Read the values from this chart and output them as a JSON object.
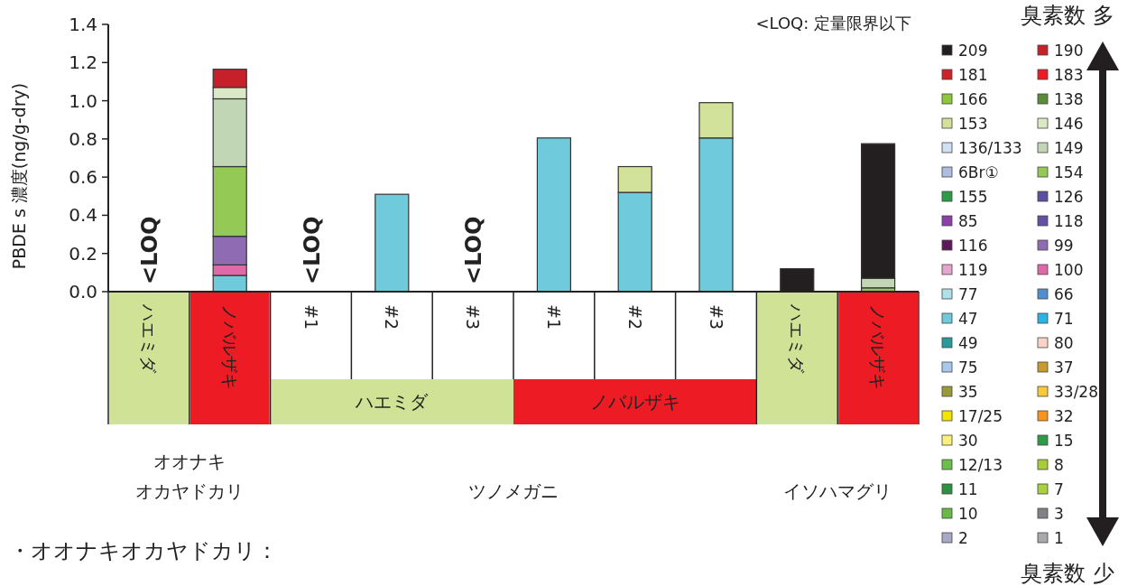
{
  "chart_data": {
    "type": "bar",
    "stacked": true,
    "ylabel": "PBDE s 濃度(ng/g-dry)",
    "categories": [
      "ハエミダ",
      "ノバルザキ",
      "#1",
      "#2",
      "#3",
      "#1",
      "#2",
      "#3",
      "ハエミダ",
      "ノバルザキ"
    ],
    "ylim": [
      0,
      1.4
    ],
    "yticks": [
      {
        "value": 0,
        "label": "0.0"
      },
      {
        "value": 0.2,
        "label": "0.2"
      },
      {
        "value": 0.4,
        "label": "0.4"
      },
      {
        "value": 0.6,
        "label": "0.6"
      },
      {
        "value": 0.8,
        "label": "0.8"
      },
      {
        "value": 1.0,
        "label": "1.0"
      },
      {
        "value": 1.2,
        "label": "1.2"
      },
      {
        "value": 1.4,
        "label": "1.4"
      }
    ],
    "legend": "right",
    "series": [
      {
        "name": "1",
        "color": "#a7a9ac",
        "values": [
          null,
          null,
          null,
          null,
          null,
          null,
          null,
          null,
          null,
          null
        ]
      },
      {
        "name": "2",
        "color": "#a7a9c7",
        "values": [
          null,
          null,
          null,
          null,
          null,
          null,
          null,
          null,
          null,
          null
        ]
      },
      {
        "name": "3",
        "color": "#808285",
        "values": [
          null,
          null,
          null,
          null,
          null,
          null,
          null,
          null,
          null,
          null
        ]
      },
      {
        "name": "10",
        "color": "#6ab84a",
        "values": [
          null,
          null,
          null,
          null,
          null,
          null,
          null,
          null,
          null,
          null
        ]
      },
      {
        "name": "7",
        "color": "#a8d040",
        "values": [
          null,
          null,
          null,
          null,
          null,
          null,
          null,
          null,
          null,
          null
        ]
      },
      {
        "name": "11",
        "color": "#2e9040",
        "values": [
          null,
          null,
          null,
          null,
          null,
          null,
          null,
          null,
          null,
          null
        ]
      },
      {
        "name": "8",
        "color": "#a6cc3a",
        "values": [
          null,
          null,
          null,
          null,
          null,
          null,
          null,
          null,
          null,
          null
        ]
      },
      {
        "name": "12/13",
        "color": "#6cbf4b",
        "values": [
          null,
          null,
          null,
          null,
          null,
          null,
          null,
          null,
          null,
          null
        ]
      },
      {
        "name": "15",
        "color": "#2e9b48",
        "values": [
          null,
          null,
          null,
          null,
          null,
          null,
          null,
          null,
          null,
          null
        ]
      },
      {
        "name": "30",
        "color": "#faef7a",
        "values": [
          null,
          null,
          null,
          null,
          null,
          null,
          null,
          null,
          null,
          null
        ]
      },
      {
        "name": "32",
        "color": "#f7941e",
        "values": [
          null,
          null,
          null,
          null,
          null,
          null,
          null,
          null,
          null,
          null
        ]
      },
      {
        "name": "17/25",
        "color": "#f2e600",
        "values": [
          null,
          null,
          null,
          null,
          null,
          null,
          null,
          null,
          null,
          null
        ]
      },
      {
        "name": "33/28",
        "color": "#f9c93a",
        "values": [
          null,
          null,
          null,
          null,
          null,
          null,
          null,
          null,
          null,
          null
        ]
      },
      {
        "name": "35",
        "color": "#9a9a3a",
        "values": [
          null,
          null,
          null,
          null,
          null,
          null,
          null,
          null,
          null,
          null
        ]
      },
      {
        "name": "37",
        "color": "#c99a2e",
        "values": [
          null,
          null,
          null,
          null,
          null,
          null,
          null,
          null,
          null,
          null
        ]
      },
      {
        "name": "75",
        "color": "#a8c8ec",
        "values": [
          null,
          null,
          null,
          null,
          null,
          null,
          null,
          null,
          null,
          null
        ]
      },
      {
        "name": "80",
        "color": "#f8d4c8",
        "values": [
          null,
          null,
          null,
          null,
          null,
          null,
          null,
          null,
          null,
          null
        ]
      },
      {
        "name": "49",
        "color": "#2a9a9a",
        "values": [
          null,
          null,
          null,
          null,
          null,
          null,
          null,
          null,
          null,
          null
        ]
      },
      {
        "name": "71",
        "color": "#2ab3e6",
        "values": [
          null,
          null,
          null,
          null,
          null,
          null,
          null,
          null,
          null,
          null
        ]
      },
      {
        "name": "47",
        "color": "#6fcbdc",
        "values": [
          null,
          0.085,
          null,
          0.51,
          null,
          0.805,
          0.52,
          0.805,
          null,
          null
        ]
      },
      {
        "name": "66",
        "color": "#4f8fcf",
        "values": [
          null,
          null,
          null,
          null,
          null,
          null,
          null,
          null,
          null,
          null
        ]
      },
      {
        "name": "77",
        "color": "#aee2ea",
        "values": [
          null,
          null,
          null,
          null,
          null,
          null,
          null,
          null,
          null,
          null
        ]
      },
      {
        "name": "100",
        "color": "#e06aa9",
        "values": [
          null,
          0.055,
          null,
          null,
          null,
          null,
          null,
          null,
          null,
          null
        ]
      },
      {
        "name": "119",
        "color": "#e4a6cf",
        "values": [
          null,
          null,
          null,
          null,
          null,
          null,
          null,
          null,
          null,
          null
        ]
      },
      {
        "name": "99",
        "color": "#8e6bb3",
        "values": [
          null,
          0.15,
          null,
          null,
          null,
          null,
          null,
          null,
          null,
          null
        ]
      },
      {
        "name": "116",
        "color": "#5c1a5a",
        "values": [
          null,
          null,
          null,
          null,
          null,
          null,
          null,
          null,
          null,
          null
        ]
      },
      {
        "name": "118",
        "color": "#6550a8",
        "values": [
          null,
          null,
          null,
          null,
          null,
          null,
          null,
          null,
          null,
          null
        ]
      },
      {
        "name": "85",
        "color": "#8d3fa8",
        "values": [
          null,
          null,
          null,
          null,
          null,
          null,
          null,
          null,
          null,
          null
        ]
      },
      {
        "name": "126",
        "color": "#5e4fa2",
        "values": [
          null,
          null,
          null,
          null,
          null,
          null,
          null,
          null,
          null,
          null
        ]
      },
      {
        "name": "155",
        "color": "#2e9b48",
        "values": [
          null,
          null,
          null,
          null,
          null,
          null,
          null,
          null,
          null,
          null
        ]
      },
      {
        "name": "154",
        "color": "#94c955",
        "values": [
          null,
          0.365,
          null,
          null,
          null,
          null,
          null,
          null,
          null,
          0.02
        ]
      },
      {
        "name": "6Br①",
        "color": "#aebde0",
        "values": [
          null,
          null,
          null,
          null,
          null,
          null,
          null,
          null,
          null,
          null
        ]
      },
      {
        "name": "149",
        "color": "#c0d6b4",
        "values": [
          null,
          0.355,
          null,
          null,
          null,
          null,
          null,
          null,
          null,
          0.05
        ]
      },
      {
        "name": "136/133",
        "color": "#cfe0f2",
        "values": [
          null,
          null,
          null,
          null,
          null,
          null,
          null,
          null,
          null,
          null
        ]
      },
      {
        "name": "146",
        "color": "#dae8c6",
        "values": [
          null,
          0.06,
          null,
          null,
          null,
          null,
          null,
          null,
          null,
          null
        ]
      },
      {
        "name": "153",
        "color": "#d2e29a",
        "values": [
          null,
          null,
          null,
          null,
          null,
          null,
          0.135,
          0.185,
          null,
          null
        ]
      },
      {
        "name": "138",
        "color": "#5b8c3a",
        "values": [
          null,
          null,
          null,
          null,
          null,
          null,
          null,
          null,
          null,
          null
        ]
      },
      {
        "name": "166",
        "color": "#8dc63f",
        "values": [
          null,
          null,
          null,
          null,
          null,
          null,
          null,
          null,
          null,
          null
        ]
      },
      {
        "name": "183",
        "color": "#ed1c24",
        "values": [
          null,
          null,
          null,
          null,
          null,
          null,
          null,
          null,
          null,
          null
        ]
      },
      {
        "name": "181",
        "color": "#cc2229",
        "values": [
          null,
          null,
          null,
          null,
          null,
          null,
          null,
          null,
          null,
          null
        ]
      },
      {
        "name": "190",
        "color": "#c8202a",
        "values": [
          null,
          0.095,
          null,
          null,
          null,
          null,
          null,
          null,
          null,
          null
        ]
      },
      {
        "name": "209",
        "color": "#231f20",
        "values": [
          null,
          null,
          null,
          null,
          null,
          null,
          null,
          null,
          0.12,
          0.705
        ]
      }
    ],
    "annotations": [
      "<LOQ: 定量限界以下",
      "ハエミダ",
      "ノバルザキ",
      "オオナキ",
      "オカヤドカリ",
      "ツノメガニ",
      "イソハマグリ",
      "臭素数 多",
      "臭素数 少",
      "・オオナキオカヤドカリ：",
      "<LOQ",
      "<LOQ",
      "<LOQ"
    ]
  }
}
